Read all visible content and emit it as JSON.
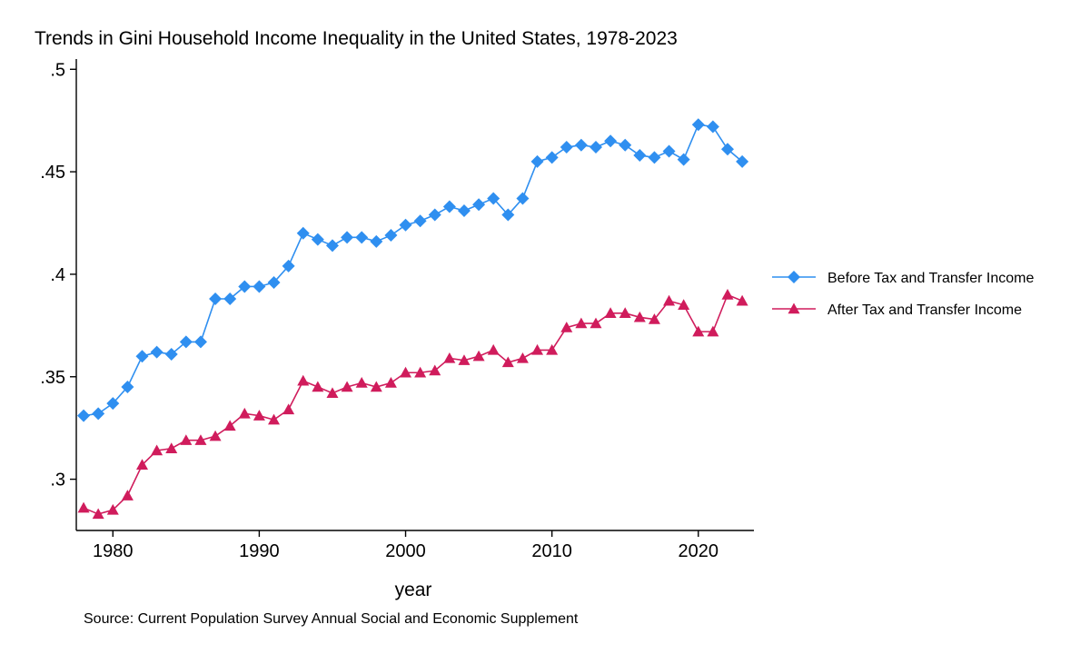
{
  "chart_data": {
    "type": "line",
    "title": "Trends in Gini Household Income Inequality in the United States, 1978-2023",
    "xlabel": "year",
    "ylabel": "",
    "note": "Source: Current Population Survey Annual Social and Economic Supplement",
    "xlim": [
      1977.5,
      2023.8
    ],
    "ylim": [
      0.275,
      0.505
    ],
    "x_ticks": [
      1980,
      1990,
      2000,
      2010,
      2020
    ],
    "x_tick_labels": [
      "1980",
      "1990",
      "2000",
      "2010",
      "2020"
    ],
    "y_ticks": [
      0.3,
      0.35,
      0.4,
      0.45,
      0.5
    ],
    "y_tick_labels": [
      ".3",
      ".35",
      ".4",
      ".45",
      ".5"
    ],
    "grid": false,
    "legend_position": "right",
    "x": [
      1978,
      1979,
      1980,
      1981,
      1982,
      1983,
      1984,
      1985,
      1986,
      1987,
      1988,
      1989,
      1990,
      1991,
      1992,
      1993,
      1994,
      1995,
      1996,
      1997,
      1998,
      1999,
      2000,
      2001,
      2002,
      2003,
      2004,
      2005,
      2006,
      2007,
      2008,
      2009,
      2010,
      2011,
      2012,
      2013,
      2014,
      2015,
      2016,
      2017,
      2018,
      2019,
      2020,
      2021,
      2022,
      2023
    ],
    "series": [
      {
        "name": "Before Tax and Transfer Income",
        "color": "#2f8ff0",
        "marker": "diamond",
        "values": [
          0.331,
          0.332,
          0.337,
          0.345,
          0.36,
          0.362,
          0.361,
          0.367,
          0.367,
          0.388,
          0.388,
          0.394,
          0.394,
          0.396,
          0.404,
          0.42,
          0.417,
          0.414,
          0.418,
          0.418,
          0.416,
          0.419,
          0.424,
          0.426,
          0.429,
          0.433,
          0.431,
          0.434,
          0.437,
          0.429,
          0.437,
          0.455,
          0.457,
          0.462,
          0.463,
          0.462,
          0.465,
          0.463,
          0.458,
          0.457,
          0.46,
          0.456,
          0.473,
          0.472,
          0.461,
          0.455
        ]
      },
      {
        "name": "After Tax and Transfer Income",
        "color": "#d01c5c",
        "marker": "triangle",
        "values": [
          0.286,
          0.283,
          0.285,
          0.292,
          0.307,
          0.314,
          0.315,
          0.319,
          0.319,
          0.321,
          0.326,
          0.332,
          0.331,
          0.329,
          0.334,
          0.348,
          0.345,
          0.342,
          0.345,
          0.347,
          0.345,
          0.347,
          0.352,
          0.352,
          0.353,
          0.359,
          0.358,
          0.36,
          0.363,
          0.357,
          0.359,
          0.363,
          0.363,
          0.374,
          0.376,
          0.376,
          0.381,
          0.381,
          0.379,
          0.378,
          0.387,
          0.385,
          0.372,
          0.372,
          0.39,
          0.387
        ]
      }
    ]
  }
}
